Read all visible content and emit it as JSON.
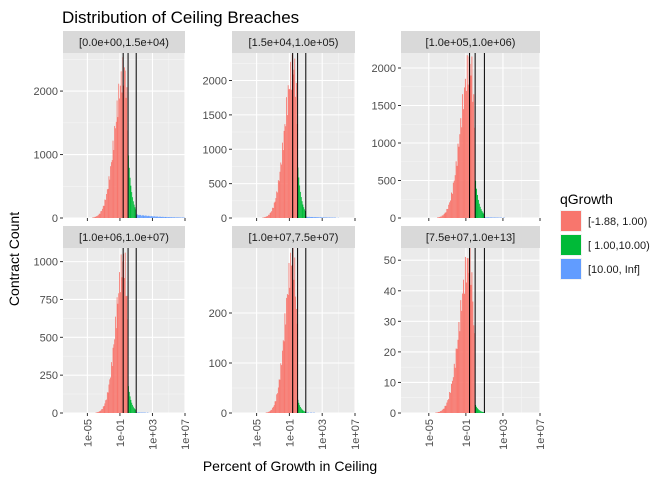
{
  "chart_data": {
    "type": "bar",
    "title": "Distribution of Ceiling Breaches",
    "xlabel": "Percent of Growth in  Ceiling",
    "ylabel": "Contract Count",
    "x_scale": "log10",
    "x_range": [
      1e-08,
      10000000.0
    ],
    "x_ticks": [
      {
        "value": 1e-05,
        "label": "1e-05"
      },
      {
        "value": 0.1,
        "label": "1e-01"
      },
      {
        "value": 1000,
        "label": "1e+03"
      },
      {
        "value": 10000000,
        "label": "1e+07"
      }
    ],
    "vertical_lines": [
      0.25,
      1,
      10
    ],
    "grid": true,
    "legend": {
      "title": "qGrowth",
      "position": "right",
      "items": [
        {
          "label": "[-1.88, 1.00)",
          "color": "#F8766D"
        },
        {
          "label": "[ 1.00,10.00)",
          "color": "#00BA38"
        },
        {
          "label": "[10.00,  Inf]",
          "color": "#619CFF"
        }
      ]
    },
    "panels": [
      {
        "label": "[0.0e+00,1.5e+04)",
        "ylim": [
          0,
          2600
        ],
        "yticks": [
          0,
          1000,
          2000
        ],
        "peak": 2300,
        "peak_log": -0.45,
        "spread": 1.15,
        "green_head": 1100,
        "green_decay": 2.2,
        "blue_level": 60
      },
      {
        "label": "[1.5e+04,1.0e+05)",
        "ylim": [
          0,
          2400
        ],
        "yticks": [
          0,
          500,
          1000,
          1500,
          2000
        ],
        "peak": 2200,
        "peak_log": -0.45,
        "spread": 1.1,
        "green_head": 820,
        "green_decay": 2.2,
        "blue_level": 20
      },
      {
        "label": "[1.0e+05,1.0e+06)",
        "ylim": [
          0,
          2200
        ],
        "yticks": [
          0,
          500,
          1000,
          1500,
          2000
        ],
        "peak": 2050,
        "peak_log": -0.5,
        "spread": 1.05,
        "green_head": 560,
        "green_decay": 2.4,
        "blue_level": 10
      },
      {
        "label": "[1.0e+06,1.0e+07)",
        "ylim": [
          0,
          1090
        ],
        "yticks": [
          0,
          250,
          500,
          750,
          1000
        ],
        "peak": 1000,
        "peak_log": -0.5,
        "spread": 1.0,
        "green_head": 200,
        "green_decay": 2.4,
        "blue_level": 4
      },
      {
        "label": "[1.0e+07,7.5e+07)",
        "ylim": [
          0,
          330
        ],
        "yticks": [
          0,
          100,
          200
        ],
        "peak": 310,
        "peak_log": -0.55,
        "spread": 0.95,
        "green_head": 30,
        "green_decay": 2.6,
        "blue_level": 1
      },
      {
        "label": "[7.5e+07,1.0e+13]",
        "ylim": [
          0,
          54
        ],
        "yticks": [
          0,
          10,
          20,
          30,
          40,
          50
        ],
        "peak": 50,
        "peak_log": -0.6,
        "spread": 1.05,
        "green_head": 3,
        "green_decay": 2.6,
        "blue_level": 0
      }
    ]
  }
}
